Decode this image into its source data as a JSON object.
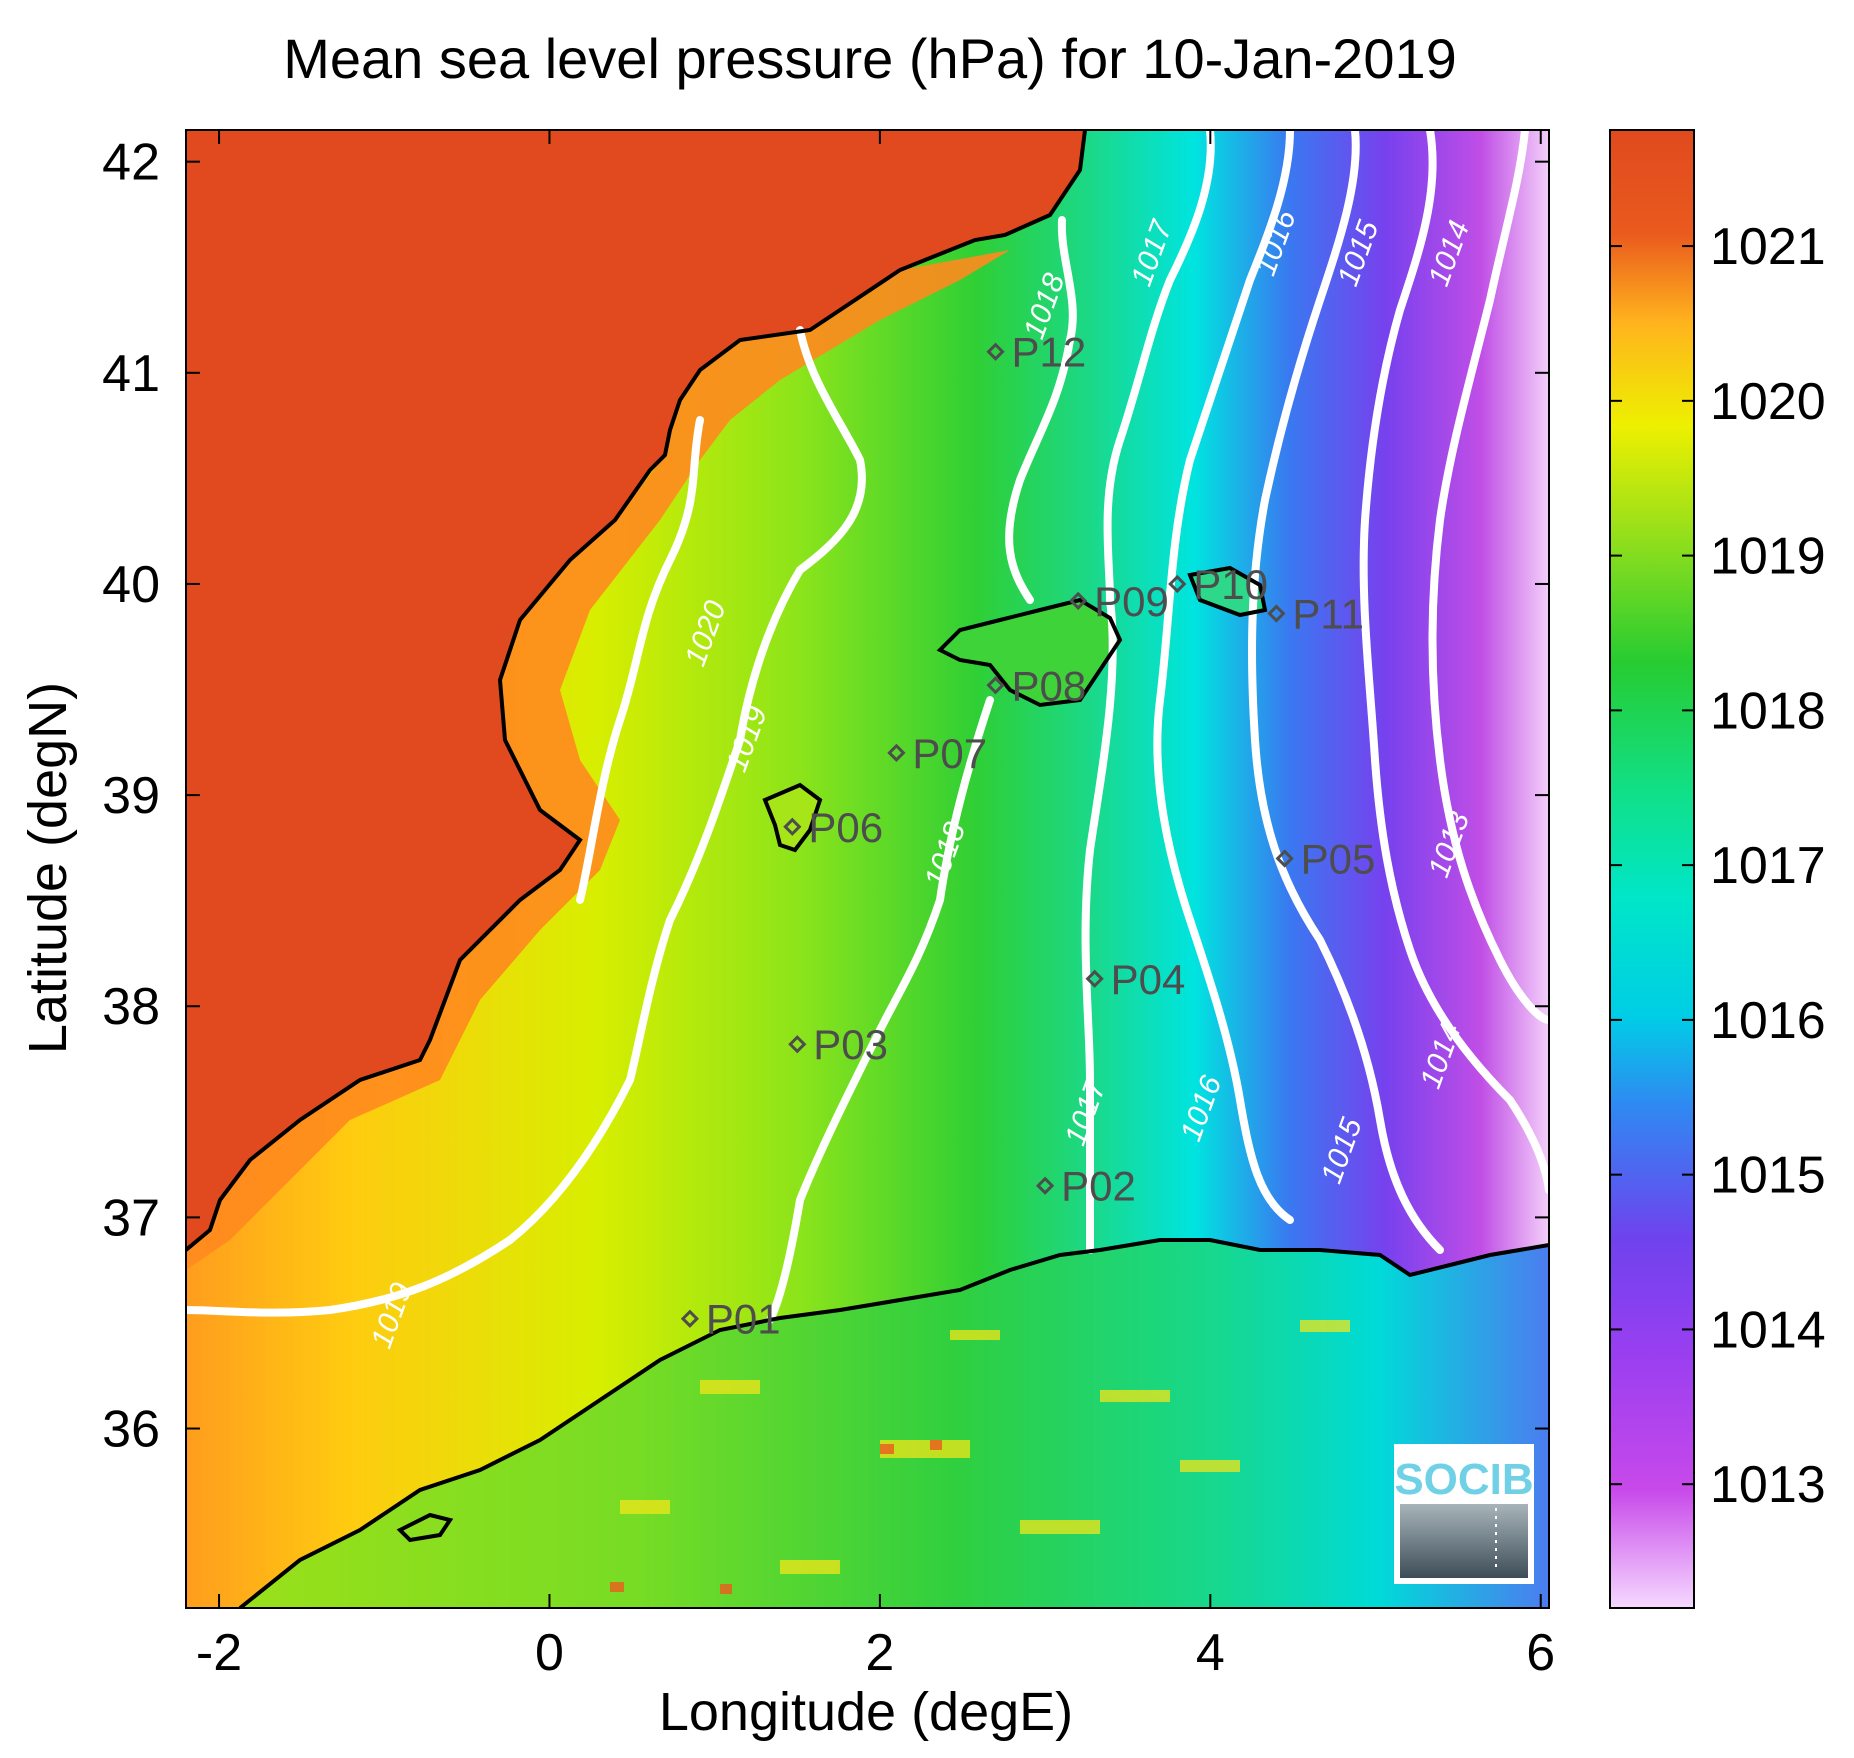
{
  "title": "Mean sea level pressure (hPa) for 10-Jan-2019",
  "xlabel": "Longitude (degE)",
  "ylabel": "Latitude (degN)",
  "x_ticks": [
    -2,
    0,
    2,
    4,
    6
  ],
  "y_ticks": [
    36,
    37,
    38,
    39,
    40,
    41,
    42
  ],
  "colorbar_ticks": [
    1013,
    1014,
    1015,
    1016,
    1017,
    1018,
    1019,
    1020,
    1021
  ],
  "logo_text": "SOCIB",
  "stations": [
    {
      "id": "P01",
      "lon": 0.85,
      "lat": 36.52
    },
    {
      "id": "P02",
      "lon": 3.0,
      "lat": 37.15
    },
    {
      "id": "P03",
      "lon": 1.5,
      "lat": 37.82
    },
    {
      "id": "P04",
      "lon": 3.3,
      "lat": 38.13
    },
    {
      "id": "P05",
      "lon": 4.45,
      "lat": 38.7
    },
    {
      "id": "P06",
      "lon": 1.47,
      "lat": 38.85
    },
    {
      "id": "P07",
      "lon": 2.1,
      "lat": 39.2
    },
    {
      "id": "P08",
      "lon": 2.7,
      "lat": 39.52
    },
    {
      "id": "P09",
      "lon": 3.2,
      "lat": 39.92
    },
    {
      "id": "P10",
      "lon": 3.8,
      "lat": 40.0
    },
    {
      "id": "P11",
      "lon": 4.4,
      "lat": 39.86
    },
    {
      "id": "P12",
      "lon": 2.7,
      "lat": 41.1
    }
  ],
  "contour_labels": [
    {
      "text": "1020",
      "lon": 1.0,
      "lat": 39.75
    },
    {
      "text": "1019",
      "lon": 1.25,
      "lat": 39.25
    },
    {
      "text": "1019",
      "lon": -0.9,
      "lat": 36.52
    },
    {
      "text": "1018",
      "lon": 3.05,
      "lat": 41.3
    },
    {
      "text": "1018",
      "lon": 2.45,
      "lat": 38.7
    },
    {
      "text": "1017",
      "lon": 3.7,
      "lat": 41.55
    },
    {
      "text": "1017",
      "lon": 3.3,
      "lat": 37.48
    },
    {
      "text": "1016",
      "lon": 4.45,
      "lat": 41.6
    },
    {
      "text": "1016",
      "lon": 4.0,
      "lat": 37.5
    },
    {
      "text": "1015",
      "lon": 4.95,
      "lat": 41.55
    },
    {
      "text": "1015",
      "lon": 4.85,
      "lat": 37.3
    },
    {
      "text": "1014",
      "lon": 5.5,
      "lat": 41.55
    },
    {
      "text": "1014",
      "lon": 5.45,
      "lat": 37.75
    },
    {
      "text": "1013",
      "lon": 5.5,
      "lat": 38.75
    }
  ],
  "colors": {
    "c1021": "#e04a1e",
    "c1020": "#ffa81e",
    "c1019": "#e6f000",
    "c1018": "#27cc31",
    "c1017": "#0ae890",
    "c1016": "#00e6e6",
    "c1015": "#2d8ff5",
    "c1014": "#7b3df2",
    "c1013": "#c14de6",
    "c1012": "#f1c9ff"
  }
}
